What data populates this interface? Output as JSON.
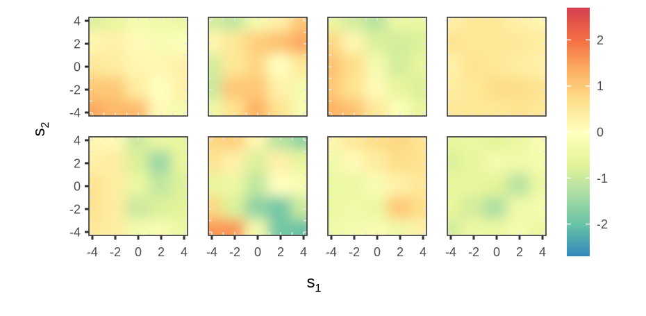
{
  "chart_data": {
    "type": "heatmap",
    "title": "",
    "layout": {
      "rows": 2,
      "cols": 4
    },
    "xlabel": {
      "main": "s",
      "sub": "1"
    },
    "ylabel": {
      "main": "s",
      "sub": "2"
    },
    "xlim": [
      -4.3,
      4.3
    ],
    "ylim": [
      -4.3,
      4.3
    ],
    "x_ticks": [
      -4,
      -2,
      0,
      2,
      4
    ],
    "y_ticks": [
      -4,
      -2,
      0,
      2,
      4
    ],
    "x_tick_labels": [
      "-4",
      "-2",
      "0",
      "2",
      "4"
    ],
    "y_tick_labels": [
      "-4",
      "-2",
      "0",
      "2",
      "4"
    ],
    "colorbar": {
      "limits": [
        -2.7,
        2.7
      ],
      "ticks": [
        -2,
        -1,
        0,
        1,
        2
      ],
      "tick_labels": [
        "-2",
        "-1",
        "0",
        "1",
        "2"
      ],
      "colors": [
        "#3288bd",
        "#66c2a5",
        "#abdda4",
        "#e6f598",
        "#ffffbf",
        "#fee08b",
        "#fdae61",
        "#f46d43",
        "#d53e4f"
      ]
    },
    "grid_x": [
      -4,
      -2,
      0,
      2,
      4
    ],
    "grid_y": [
      4,
      2,
      0,
      -2,
      -4
    ],
    "panels": [
      {
        "values": [
          [
            -0.8,
            -0.6,
            -0.3,
            -0.4,
            -0.5
          ],
          [
            0.2,
            0.3,
            0.1,
            -0.2,
            -0.1
          ],
          [
            0.5,
            0.4,
            0.2,
            0.2,
            0.3
          ],
          [
            1.0,
            1.0,
            0.4,
            0.0,
            0.3
          ],
          [
            1.4,
            1.2,
            1.2,
            0.1,
            -0.3
          ]
        ]
      },
      {
        "values": [
          [
            -0.9,
            -1.1,
            -0.3,
            0.3,
            1.0
          ],
          [
            0.2,
            0.5,
            0.9,
            1.1,
            1.4
          ],
          [
            -0.9,
            0.5,
            0.8,
            0.0,
            0.5
          ],
          [
            -1.0,
            1.0,
            1.0,
            0.3,
            -0.3
          ],
          [
            -0.4,
            0.6,
            1.3,
            0.6,
            -0.2
          ]
        ]
      },
      {
        "values": [
          [
            -0.5,
            -0.9,
            -1.2,
            -0.5,
            -0.5
          ],
          [
            0.8,
            0.2,
            -0.8,
            -0.9,
            -0.8
          ],
          [
            1.1,
            0.7,
            -0.3,
            -0.9,
            -0.6
          ],
          [
            1.0,
            0.6,
            0.1,
            -0.6,
            -0.8
          ],
          [
            1.3,
            1.1,
            0.5,
            -0.1,
            -0.6
          ]
        ]
      },
      {
        "values": [
          [
            0.3,
            0.5,
            0.5,
            0.3,
            0.2
          ],
          [
            0.6,
            0.5,
            0.5,
            0.5,
            0.4
          ],
          [
            0.3,
            0.6,
            0.5,
            0.4,
            0.3
          ],
          [
            0.4,
            0.5,
            0.7,
            0.7,
            0.6
          ],
          [
            0.5,
            0.5,
            0.5,
            0.6,
            0.5
          ]
        ]
      },
      {
        "values": [
          [
            0.2,
            0.1,
            -1.0,
            -0.5,
            -0.6
          ],
          [
            0.3,
            0.4,
            -0.8,
            -1.5,
            -0.6
          ],
          [
            0.6,
            0.4,
            -0.5,
            -1.1,
            -0.8
          ],
          [
            0.6,
            0.4,
            -1.0,
            -0.8,
            -0.7
          ],
          [
            0.5,
            0.4,
            -0.3,
            -0.2,
            -0.5
          ]
        ]
      },
      {
        "values": [
          [
            0.8,
            0.9,
            0.2,
            -1.2,
            -1.6
          ],
          [
            0.6,
            0.3,
            -0.8,
            0.3,
            -0.6
          ],
          [
            -0.6,
            -0.5,
            -1.1,
            0.0,
            -0.2
          ],
          [
            0.8,
            -0.8,
            -1.6,
            -1.9,
            -1.0
          ],
          [
            1.6,
            1.6,
            -0.3,
            -1.9,
            -2.0
          ]
        ]
      },
      {
        "values": [
          [
            0.2,
            0.5,
            0.7,
            0.8,
            0.6
          ],
          [
            -0.4,
            0.1,
            0.4,
            0.7,
            0.6
          ],
          [
            -0.5,
            -0.5,
            -0.2,
            0.3,
            0.5
          ],
          [
            -0.5,
            -0.4,
            -0.5,
            1.0,
            0.7
          ],
          [
            -0.4,
            -0.3,
            -0.2,
            -0.4,
            0.3
          ]
        ]
      },
      {
        "values": [
          [
            -0.6,
            -0.5,
            -0.7,
            -0.5,
            -0.2
          ],
          [
            -0.8,
            -0.6,
            -0.3,
            -0.4,
            -0.3
          ],
          [
            -0.6,
            -0.6,
            -0.7,
            -1.2,
            -0.5
          ],
          [
            -0.6,
            -0.9,
            -1.3,
            -0.4,
            -0.3
          ],
          [
            -0.9,
            -0.5,
            -0.5,
            -0.3,
            -0.5
          ]
        ]
      }
    ]
  }
}
